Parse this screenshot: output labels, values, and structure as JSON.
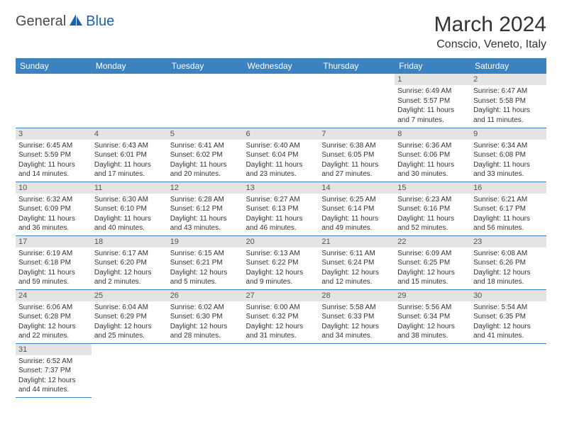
{
  "logo": {
    "part1": "General",
    "part2": "Blue",
    "color1": "#4a4a4a",
    "color2": "#1f5fa6"
  },
  "title": "March 2024",
  "location": "Conscio, Veneto, Italy",
  "colors": {
    "header_bg": "#3b83c0",
    "header_text": "#ffffff",
    "daynum_bg": "#e4e4e4",
    "border": "#3b83c0",
    "text": "#333333"
  },
  "weekdays": [
    "Sunday",
    "Monday",
    "Tuesday",
    "Wednesday",
    "Thursday",
    "Friday",
    "Saturday"
  ],
  "weeks": [
    [
      null,
      null,
      null,
      null,
      null,
      {
        "n": "1",
        "sr": "6:49 AM",
        "ss": "5:57 PM",
        "dl": "11 hours and 7 minutes."
      },
      {
        "n": "2",
        "sr": "6:47 AM",
        "ss": "5:58 PM",
        "dl": "11 hours and 11 minutes."
      }
    ],
    [
      {
        "n": "3",
        "sr": "6:45 AM",
        "ss": "5:59 PM",
        "dl": "11 hours and 14 minutes."
      },
      {
        "n": "4",
        "sr": "6:43 AM",
        "ss": "6:01 PM",
        "dl": "11 hours and 17 minutes."
      },
      {
        "n": "5",
        "sr": "6:41 AM",
        "ss": "6:02 PM",
        "dl": "11 hours and 20 minutes."
      },
      {
        "n": "6",
        "sr": "6:40 AM",
        "ss": "6:04 PM",
        "dl": "11 hours and 23 minutes."
      },
      {
        "n": "7",
        "sr": "6:38 AM",
        "ss": "6:05 PM",
        "dl": "11 hours and 27 minutes."
      },
      {
        "n": "8",
        "sr": "6:36 AM",
        "ss": "6:06 PM",
        "dl": "11 hours and 30 minutes."
      },
      {
        "n": "9",
        "sr": "6:34 AM",
        "ss": "6:08 PM",
        "dl": "11 hours and 33 minutes."
      }
    ],
    [
      {
        "n": "10",
        "sr": "6:32 AM",
        "ss": "6:09 PM",
        "dl": "11 hours and 36 minutes."
      },
      {
        "n": "11",
        "sr": "6:30 AM",
        "ss": "6:10 PM",
        "dl": "11 hours and 40 minutes."
      },
      {
        "n": "12",
        "sr": "6:28 AM",
        "ss": "6:12 PM",
        "dl": "11 hours and 43 minutes."
      },
      {
        "n": "13",
        "sr": "6:27 AM",
        "ss": "6:13 PM",
        "dl": "11 hours and 46 minutes."
      },
      {
        "n": "14",
        "sr": "6:25 AM",
        "ss": "6:14 PM",
        "dl": "11 hours and 49 minutes."
      },
      {
        "n": "15",
        "sr": "6:23 AM",
        "ss": "6:16 PM",
        "dl": "11 hours and 52 minutes."
      },
      {
        "n": "16",
        "sr": "6:21 AM",
        "ss": "6:17 PM",
        "dl": "11 hours and 56 minutes."
      }
    ],
    [
      {
        "n": "17",
        "sr": "6:19 AM",
        "ss": "6:18 PM",
        "dl": "11 hours and 59 minutes."
      },
      {
        "n": "18",
        "sr": "6:17 AM",
        "ss": "6:20 PM",
        "dl": "12 hours and 2 minutes."
      },
      {
        "n": "19",
        "sr": "6:15 AM",
        "ss": "6:21 PM",
        "dl": "12 hours and 5 minutes."
      },
      {
        "n": "20",
        "sr": "6:13 AM",
        "ss": "6:22 PM",
        "dl": "12 hours and 9 minutes."
      },
      {
        "n": "21",
        "sr": "6:11 AM",
        "ss": "6:24 PM",
        "dl": "12 hours and 12 minutes."
      },
      {
        "n": "22",
        "sr": "6:09 AM",
        "ss": "6:25 PM",
        "dl": "12 hours and 15 minutes."
      },
      {
        "n": "23",
        "sr": "6:08 AM",
        "ss": "6:26 PM",
        "dl": "12 hours and 18 minutes."
      }
    ],
    [
      {
        "n": "24",
        "sr": "6:06 AM",
        "ss": "6:28 PM",
        "dl": "12 hours and 22 minutes."
      },
      {
        "n": "25",
        "sr": "6:04 AM",
        "ss": "6:29 PM",
        "dl": "12 hours and 25 minutes."
      },
      {
        "n": "26",
        "sr": "6:02 AM",
        "ss": "6:30 PM",
        "dl": "12 hours and 28 minutes."
      },
      {
        "n": "27",
        "sr": "6:00 AM",
        "ss": "6:32 PM",
        "dl": "12 hours and 31 minutes."
      },
      {
        "n": "28",
        "sr": "5:58 AM",
        "ss": "6:33 PM",
        "dl": "12 hours and 34 minutes."
      },
      {
        "n": "29",
        "sr": "5:56 AM",
        "ss": "6:34 PM",
        "dl": "12 hours and 38 minutes."
      },
      {
        "n": "30",
        "sr": "5:54 AM",
        "ss": "6:35 PM",
        "dl": "12 hours and 41 minutes."
      }
    ],
    [
      {
        "n": "31",
        "sr": "6:52 AM",
        "ss": "7:37 PM",
        "dl": "12 hours and 44 minutes."
      },
      null,
      null,
      null,
      null,
      null,
      null
    ]
  ],
  "labels": {
    "sunrise": "Sunrise:",
    "sunset": "Sunset:",
    "daylight": "Daylight:"
  }
}
